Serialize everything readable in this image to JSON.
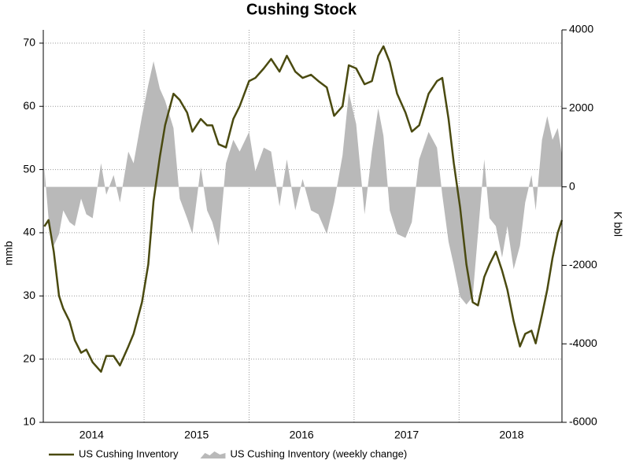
{
  "chart_data": {
    "type": "line",
    "title": "Cushing Stock",
    "ylabel": "mmb",
    "y2label": "K bbl",
    "x": [
      2014.05,
      2014.09,
      2014.14,
      2014.19,
      2014.23,
      2014.29,
      2014.34,
      2014.4,
      2014.45,
      2014.51,
      2014.59,
      2014.64,
      2014.71,
      2014.77,
      2014.85,
      2014.9,
      2014.98,
      2015.04,
      2015.09,
      2015.15,
      2015.2,
      2015.28,
      2015.34,
      2015.41,
      2015.46,
      2015.54,
      2015.6,
      2015.65,
      2015.71,
      2015.78,
      2015.85,
      2015.91,
      2016.0,
      2016.06,
      2016.14,
      2016.21,
      2016.29,
      2016.36,
      2016.44,
      2016.51,
      2016.59,
      2016.66,
      2016.74,
      2016.81,
      2016.89,
      2016.95,
      2017.02,
      2017.1,
      2017.17,
      2017.23,
      2017.28,
      2017.34,
      2017.41,
      2017.49,
      2017.55,
      2017.62,
      2017.71,
      2017.79,
      2017.84,
      2017.9,
      2017.95,
      2018.01,
      2018.07,
      2018.13,
      2018.18,
      2018.24,
      2018.29,
      2018.35,
      2018.41,
      2018.46,
      2018.52,
      2018.58,
      2018.63,
      2018.69,
      2018.73,
      2018.79,
      2018.84,
      2018.89,
      2018.94,
      2018.98
    ],
    "series": [
      {
        "name": "US Cushing Inventory (weekly change)",
        "color": "#b9b9b9",
        "axis": "y2",
        "mark": "area",
        "values": [
          500,
          -800,
          -1500,
          -1200,
          -600,
          -900,
          -1000,
          -300,
          -700,
          -800,
          600,
          -200,
          300,
          -400,
          900,
          600,
          1800,
          2600,
          3200,
          2500,
          2200,
          1500,
          -300,
          -800,
          -1200,
          500,
          -600,
          -900,
          -1500,
          600,
          1200,
          900,
          1400,
          400,
          1000,
          900,
          -500,
          700,
          -600,
          200,
          -600,
          -700,
          -1200,
          -400,
          800,
          2400,
          1600,
          -700,
          900,
          2000,
          1300,
          -600,
          -1200,
          -1300,
          -900,
          700,
          1400,
          1000,
          -200,
          -1400,
          -2000,
          -2800,
          -3000,
          -2800,
          -1200,
          700,
          -800,
          -1000,
          -1800,
          -1000,
          -2100,
          -1500,
          -400,
          300,
          -600,
          1200,
          1800,
          1200,
          1500,
          800
        ]
      },
      {
        "name": "US Cushing Inventory",
        "color": "#4a4a10",
        "mark": "line",
        "values": [
          41,
          42,
          37,
          30,
          28,
          26,
          23,
          21,
          21.5,
          19.5,
          18,
          20.5,
          20.5,
          19,
          22,
          24,
          29,
          35,
          45,
          52,
          57,
          62,
          61,
          59,
          56,
          58,
          57,
          57,
          54,
          53.5,
          58,
          60,
          64,
          64.5,
          66,
          67.5,
          65.5,
          68,
          65.5,
          64.5,
          65,
          64,
          63,
          58.5,
          60,
          66.5,
          66,
          63.5,
          64,
          68,
          69.5,
          67,
          62,
          59,
          56,
          57,
          62,
          64,
          64.5,
          58,
          51,
          44,
          35,
          29,
          28.5,
          33,
          35,
          37,
          34,
          31,
          26,
          22,
          24,
          24.5,
          22.5,
          27,
          31,
          36,
          40,
          42
        ]
      }
    ],
    "legend_order": [
      1,
      0
    ],
    "xlim": [
      2014.04,
      2018.98
    ],
    "xticks": [
      {
        "value": 2014.5,
        "label": "2014"
      },
      {
        "value": 2015.5,
        "label": "2015"
      },
      {
        "value": 2016.5,
        "label": "2016"
      },
      {
        "value": 2017.5,
        "label": "2017"
      },
      {
        "value": 2018.5,
        "label": "2018"
      }
    ],
    "xgrid": [
      2015,
      2016,
      2017,
      2018
    ],
    "ylim": [
      10,
      72.1
    ],
    "yticks": [
      10,
      20,
      30,
      40,
      50,
      60,
      70
    ],
    "y2lim": [
      -6000,
      4000
    ],
    "y2ticks": [
      -6000,
      -4000,
      -2000,
      0,
      2000,
      4000
    ],
    "grid": true,
    "legend": "bottom"
  }
}
